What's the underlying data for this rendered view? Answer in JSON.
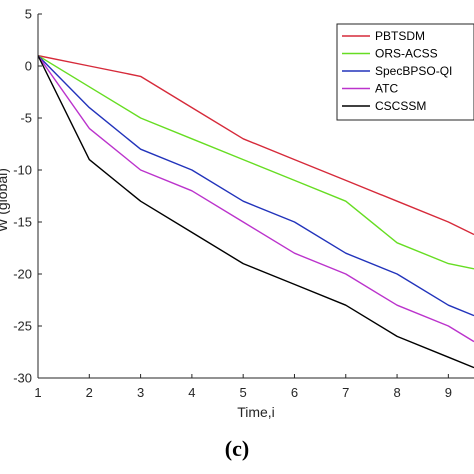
{
  "caption": "(c)",
  "chart_data": {
    "type": "line",
    "xlabel": "Time,i",
    "ylabel": "W (global)",
    "xlim": [
      1,
      9.5
    ],
    "ylim": [
      -30,
      5
    ],
    "xticks": [
      1,
      2,
      3,
      4,
      5,
      6,
      7,
      8,
      9
    ],
    "yticks": [
      5,
      0,
      -5,
      -10,
      -15,
      -20,
      -25,
      -30
    ],
    "legend_position": "top-right",
    "grid": false,
    "series": [
      {
        "name": "PBTSDM",
        "color": "#d62a3a",
        "x": [
          1,
          2,
          3,
          4,
          5,
          6,
          7,
          8,
          9,
          9.5
        ],
        "y": [
          1,
          0,
          -1,
          -4,
          -7,
          -9,
          -11,
          -13,
          -15,
          -16.2
        ]
      },
      {
        "name": "ORS-ACSS",
        "color": "#66dd22",
        "x": [
          1,
          2,
          3,
          4,
          5,
          6,
          7,
          8,
          9,
          9.5
        ],
        "y": [
          1,
          -2,
          -5,
          -7,
          -9,
          -11,
          -13,
          -17,
          -19,
          -19.5
        ]
      },
      {
        "name": "SpecBPSO-QI",
        "color": "#2233bb",
        "x": [
          1,
          2,
          3,
          4,
          5,
          6,
          7,
          8,
          9,
          9.5
        ],
        "y": [
          1,
          -4,
          -8,
          -10,
          -13,
          -15,
          -18,
          -20,
          -23,
          -24
        ]
      },
      {
        "name": "ATC",
        "color": "#bb33cc",
        "x": [
          1,
          2,
          3,
          4,
          5,
          6,
          7,
          8,
          9,
          9.5
        ],
        "y": [
          1,
          -6,
          -10,
          -12,
          -15,
          -18,
          -20,
          -23,
          -25,
          -26.5
        ]
      },
      {
        "name": "CSCSSM",
        "color": "#000000",
        "x": [
          1,
          2,
          3,
          4,
          5,
          6,
          7,
          8,
          9,
          9.5
        ],
        "y": [
          1,
          -9,
          -13,
          -16,
          -19,
          -21,
          -23,
          -26,
          -28,
          -29
        ]
      }
    ]
  }
}
